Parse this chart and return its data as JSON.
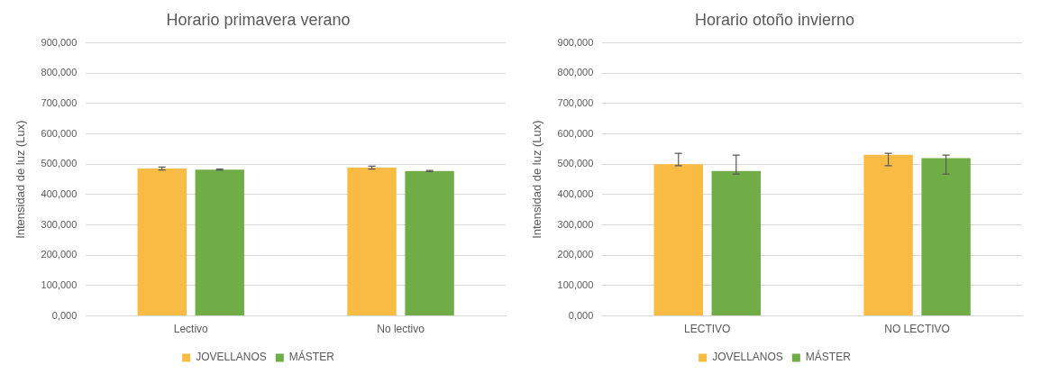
{
  "chart_data": [
    {
      "type": "bar",
      "title": "Horario primavera verano",
      "ylabel": "Intensidad de luz (Lux)",
      "categories": [
        "Lectivo",
        "No lectivo"
      ],
      "series": [
        {
          "name": "JOVELLANOS",
          "color": "#f8bb44",
          "values": [
            486,
            489
          ],
          "errors": [
            [
              481,
              491
            ],
            [
              484,
              494
            ]
          ]
        },
        {
          "name": "MÁSTER",
          "color": "#70ad47",
          "values": [
            482,
            478
          ],
          "errors": [
            [
              480,
              484
            ],
            [
              476,
              480
            ]
          ]
        }
      ],
      "ylim": [
        0,
        900
      ],
      "yticks": [
        {
          "value": 0,
          "label": "0,000"
        },
        {
          "value": 100,
          "label": "100,000"
        },
        {
          "value": 200,
          "label": "200,000"
        },
        {
          "value": 300,
          "label": "300,000"
        },
        {
          "value": 400,
          "label": "400,000"
        },
        {
          "value": 500,
          "label": "500,000"
        },
        {
          "value": 600,
          "label": "600,000"
        },
        {
          "value": 700,
          "label": "700,000"
        },
        {
          "value": 800,
          "label": "800,000"
        },
        {
          "value": 900,
          "label": "900,000"
        }
      ],
      "grid": "y",
      "legend": "bottom"
    },
    {
      "type": "bar",
      "title": "Horario otoño invierno",
      "ylabel": "Intensidad de luz (Lux)",
      "categories": [
        "LECTIVO",
        "NO LECTIVO"
      ],
      "series": [
        {
          "name": "JOVELLANOS",
          "color": "#f8bb44",
          "values": [
            500,
            531
          ],
          "errors": [
            [
              495,
              536
            ],
            [
              495,
              536
            ]
          ]
        },
        {
          "name": "MÁSTER",
          "color": "#70ad47",
          "values": [
            478,
            520
          ],
          "errors": [
            [
              468,
              530
            ],
            [
              468,
              530
            ]
          ]
        }
      ],
      "ylim": [
        0,
        900
      ],
      "yticks": [
        {
          "value": 0,
          "label": "0,000"
        },
        {
          "value": 100,
          "label": "100,000"
        },
        {
          "value": 200,
          "label": "200,000"
        },
        {
          "value": 300,
          "label": "300,000"
        },
        {
          "value": 400,
          "label": "400,000"
        },
        {
          "value": 500,
          "label": "500,000"
        },
        {
          "value": 600,
          "label": "600,000"
        },
        {
          "value": 700,
          "label": "700,000"
        },
        {
          "value": 800,
          "label": "800,000"
        },
        {
          "value": 900,
          "label": "900,000"
        }
      ],
      "grid": "y",
      "legend": "bottom"
    }
  ]
}
